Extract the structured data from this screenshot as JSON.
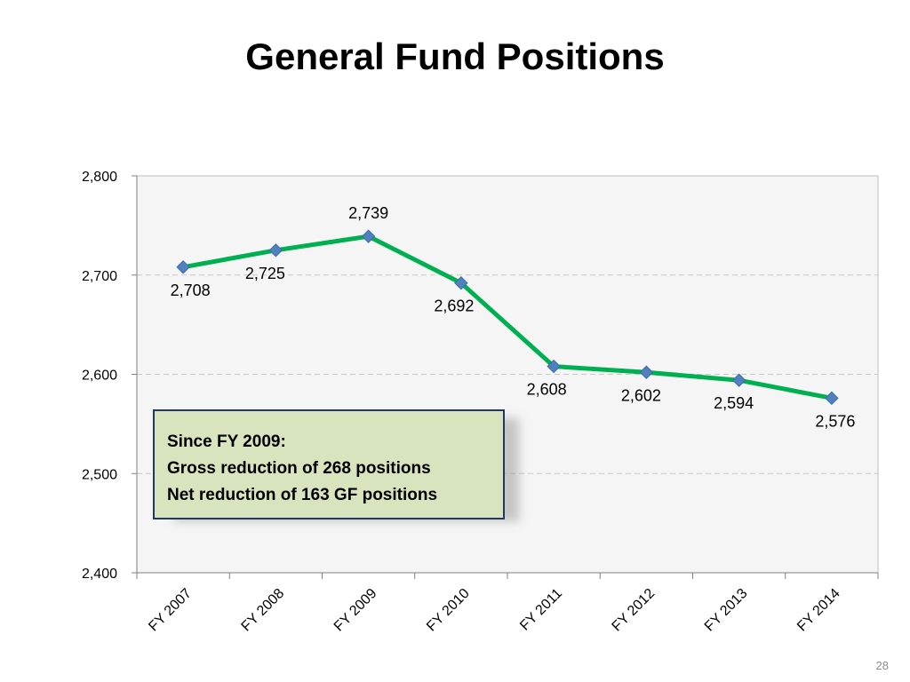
{
  "slide": {
    "title": "General Fund Positions",
    "page_number": "28"
  },
  "callout": {
    "line1": "Since FY 2009:",
    "line2": "Gross reduction of 268 positions",
    "line3": "Net reduction of  163 GF positions"
  },
  "chart_data": {
    "type": "line",
    "categories": [
      "FY 2007",
      "FY 2008",
      "FY 2009",
      "FY 2010",
      "FY 2011",
      "FY 2012",
      "FY 2013",
      "FY 2014"
    ],
    "series": [
      {
        "values": [
          2708,
          2725,
          2739,
          2692,
          2608,
          2602,
          2594,
          2576
        ]
      }
    ],
    "data_labels": [
      "2,708",
      "2,725",
      "2,739",
      "2,692",
      "2,608",
      "2,602",
      "2,594",
      "2,576"
    ],
    "ylim": [
      2400,
      2800
    ],
    "yticks": [
      2800,
      2700,
      2600,
      2500,
      2400
    ],
    "ytick_labels": [
      "2,800",
      "2,700",
      "2,600",
      "2,500",
      "2,400"
    ],
    "grid": "horizontal dashed",
    "colors": {
      "line": "#00b050",
      "marker": "#4f81bd",
      "plot_bg": "#f5f5f5",
      "grid": "#c8c8c8"
    }
  }
}
